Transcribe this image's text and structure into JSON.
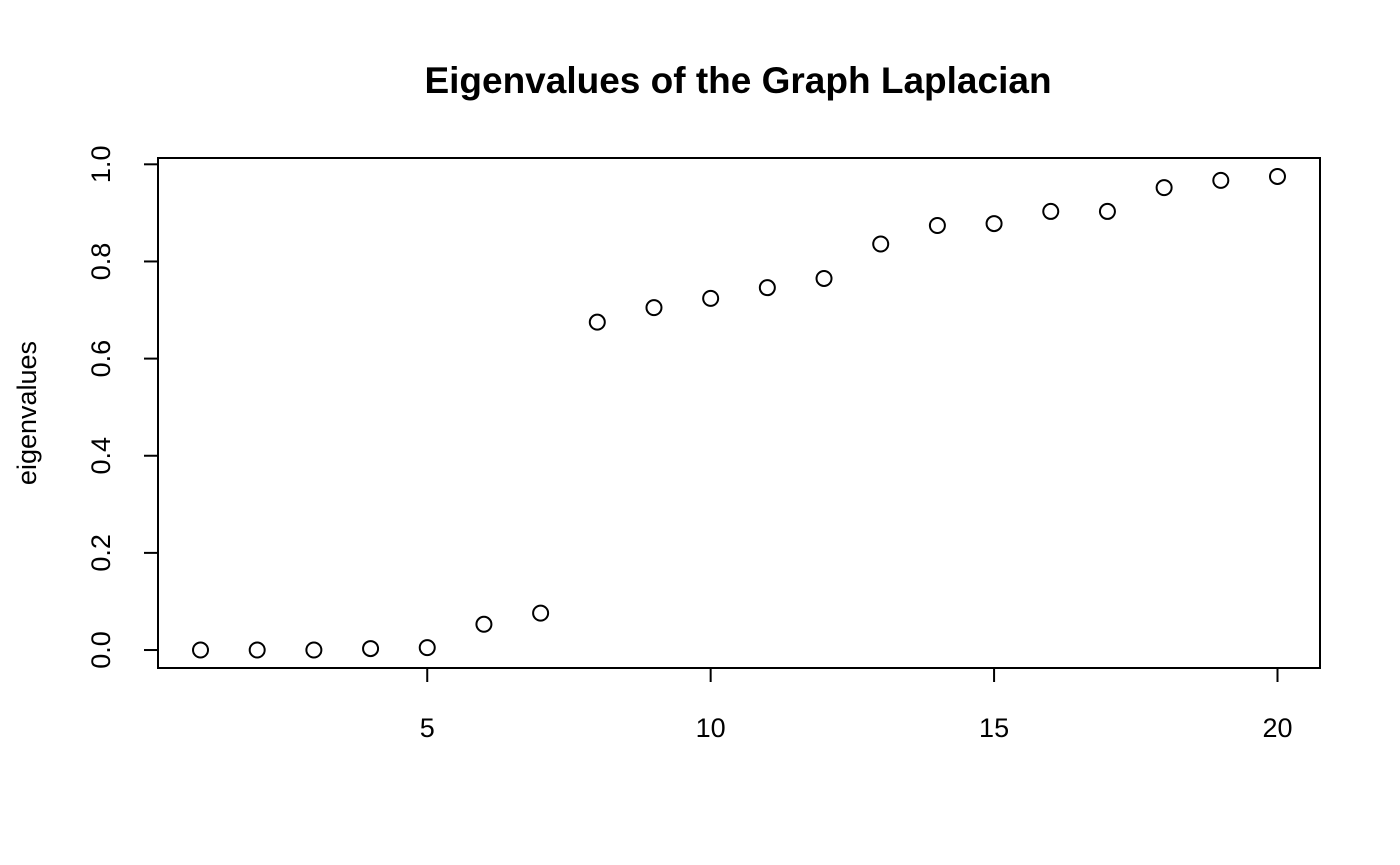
{
  "chart_data": {
    "type": "scatter",
    "title": "Eigenvalues of the Graph Laplacian",
    "xlabel": "",
    "ylabel": "eigenvalues",
    "x": [
      1,
      2,
      3,
      4,
      5,
      6,
      7,
      8,
      9,
      10,
      11,
      12,
      13,
      14,
      15,
      16,
      17,
      18,
      19,
      20
    ],
    "y": [
      0.0,
      0.0,
      0.0,
      0.003,
      0.005,
      0.053,
      0.076,
      0.675,
      0.705,
      0.724,
      0.746,
      0.765,
      0.836,
      0.874,
      0.878,
      0.903,
      0.903,
      0.952,
      0.967,
      0.975
    ],
    "xlim": [
      0.25,
      20.75
    ],
    "ylim": [
      -0.037,
      1.013
    ],
    "xticks": [
      5,
      10,
      15,
      20
    ],
    "xtick_labels": [
      "5",
      "10",
      "15",
      "20"
    ],
    "yticks": [
      0.0,
      0.2,
      0.4,
      0.6,
      0.8,
      1.0
    ],
    "ytick_labels": [
      "0.0",
      "0.2",
      "0.4",
      "0.6",
      "0.8",
      "1.0"
    ],
    "marker": "open-circle",
    "grid": false,
    "legend": "none",
    "colors": {
      "marker_stroke": "#000000",
      "background": "#ffffff",
      "axis": "#000000"
    }
  }
}
